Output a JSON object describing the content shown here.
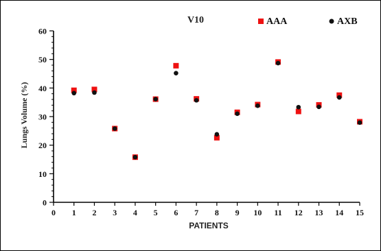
{
  "chart_data": {
    "type": "scatter",
    "title": "V10",
    "xlabel": "PATIENTS",
    "ylabel": "Lungs Volume (%)",
    "xlim": [
      0,
      15
    ],
    "ylim": [
      0,
      60
    ],
    "x_ticks": [
      0,
      1,
      2,
      3,
      4,
      5,
      6,
      7,
      8,
      9,
      10,
      11,
      12,
      13,
      14,
      15
    ],
    "y_ticks": [
      0,
      10,
      20,
      30,
      40,
      50,
      60
    ],
    "legend_position": "top-right",
    "grid": false,
    "series": [
      {
        "name": "AAA",
        "marker": "square",
        "color": "#ee1111",
        "x": [
          1,
          2,
          3,
          4,
          5,
          6,
          7,
          8,
          9,
          10,
          11,
          12,
          13,
          14,
          15
        ],
        "y": [
          39.2,
          39.5,
          25.8,
          15.8,
          36.1,
          47.8,
          36.2,
          22.6,
          31.5,
          34.2,
          49.1,
          31.8,
          34.1,
          37.5,
          28.2
        ]
      },
      {
        "name": "AXB",
        "marker": "circle",
        "color": "#111111",
        "x": [
          1,
          2,
          3,
          4,
          5,
          6,
          7,
          8,
          9,
          10,
          11,
          12,
          13,
          14,
          15
        ],
        "y": [
          38.2,
          38.4,
          25.8,
          15.8,
          36.1,
          45.2,
          35.7,
          23.8,
          31.0,
          33.8,
          48.7,
          33.3,
          33.4,
          36.7,
          27.9
        ]
      }
    ]
  }
}
